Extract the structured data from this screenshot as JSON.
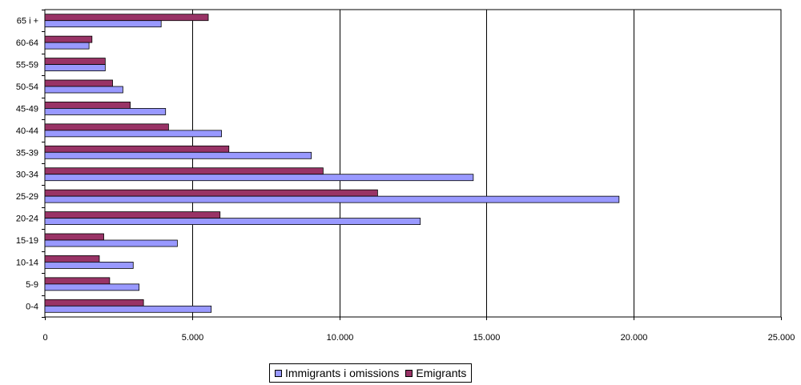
{
  "chart_data": {
    "type": "bar",
    "orientation": "horizontal",
    "categories": [
      "0-4",
      "5-9",
      "10-14",
      "15-19",
      "20-24",
      "25-29",
      "30-34",
      "35-39",
      "40-44",
      "45-49",
      "50-54",
      "55-59",
      "60-64",
      "65 i +"
    ],
    "series": [
      {
        "name": "Immigrants i omissions",
        "color": "#9999ff",
        "values": [
          5650,
          3200,
          3000,
          4500,
          12750,
          19500,
          14550,
          9050,
          6000,
          4100,
          2650,
          2050,
          1500,
          3950
        ]
      },
      {
        "name": "Emigrants",
        "color": "#993366",
        "values": [
          3350,
          2200,
          1850,
          2000,
          5950,
          11300,
          9450,
          6250,
          4200,
          2900,
          2300,
          2050,
          1600,
          5550
        ]
      }
    ],
    "xlim": [
      0,
      25000
    ],
    "xticks": [
      "0",
      "5.000",
      "10.000",
      "15.000",
      "20.000",
      "25.000"
    ],
    "xtick_values": [
      0,
      5000,
      10000,
      15000,
      20000,
      25000
    ],
    "grid": "vertical",
    "legend_position": "bottom-center"
  }
}
